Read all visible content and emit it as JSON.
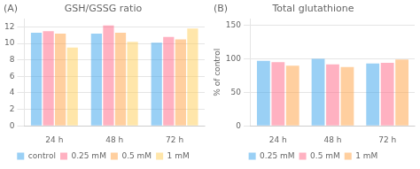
{
  "chart_data": [
    {
      "type": "bar",
      "title": "GSH/GSSG ratio",
      "annotations": [
        "(A)"
      ],
      "categories": [
        "24 h",
        "48 h",
        "72 h"
      ],
      "series": [
        {
          "name": "control",
          "values": [
            11.3,
            11.2,
            10.1
          ]
        },
        {
          "name": "0.25 mM",
          "values": [
            11.5,
            12.2,
            10.8
          ]
        },
        {
          "name": "0.5 mM",
          "values": [
            11.2,
            11.3,
            10.5
          ]
        },
        {
          "name": "1 mM",
          "values": [
            9.5,
            10.2,
            11.8
          ]
        }
      ],
      "ylim": [
        0,
        13
      ],
      "yticks": [
        0,
        2,
        4,
        6,
        8,
        10,
        12
      ],
      "grid": true,
      "legend": "bottom"
    },
    {
      "type": "bar",
      "title": "Total glutathione",
      "annotations": [
        "(B)"
      ],
      "ylabel": "% of control",
      "categories": [
        "24 h",
        "48 h",
        "72 h"
      ],
      "series": [
        {
          "name": "0.25 mM",
          "values": [
            97,
            100,
            93
          ]
        },
        {
          "name": "0.5 mM",
          "values": [
            95,
            92,
            94
          ]
        },
        {
          "name": "1 mM",
          "values": [
            90,
            88,
            99
          ]
        }
      ],
      "ylim": [
        0,
        160
      ],
      "yticks": [
        0,
        50,
        100,
        150
      ],
      "grid": true,
      "legend": "bottom"
    }
  ]
}
